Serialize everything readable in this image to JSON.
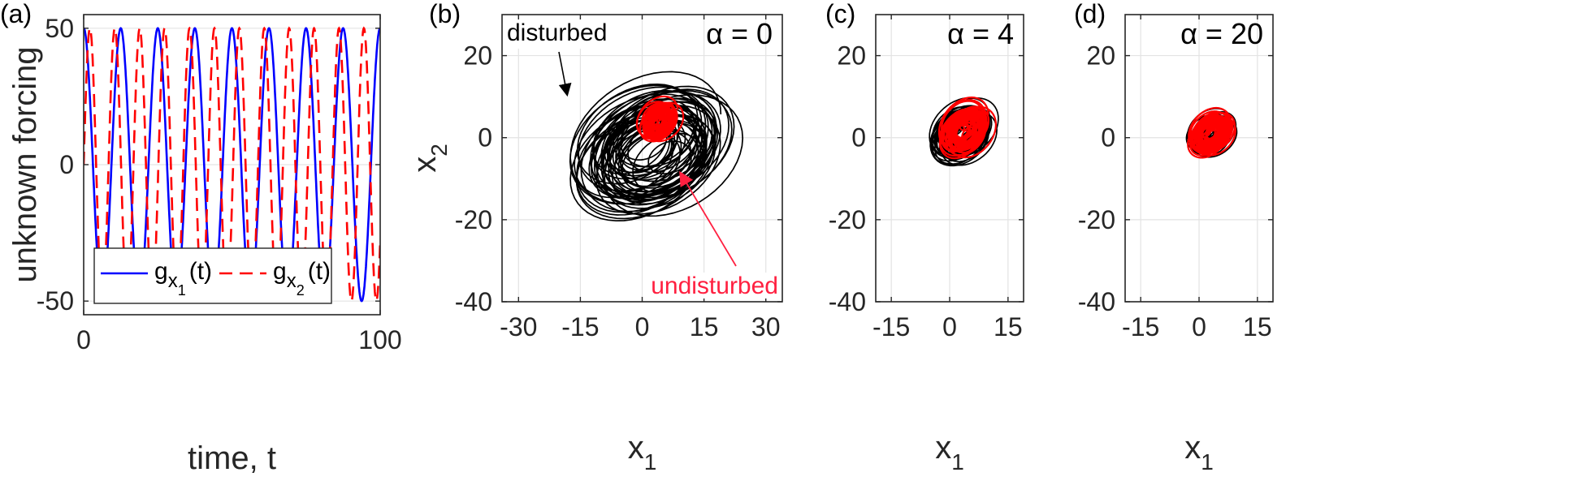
{
  "chart_data": [
    {
      "panel_label": "(a)",
      "type": "line",
      "xlabel": "time, t",
      "ylabel": "unknown forcing",
      "xlim": [
        0,
        100
      ],
      "ylim": [
        -55,
        55
      ],
      "xticks": [
        "0",
        "100"
      ],
      "yticks": [
        "50",
        "0",
        "-50"
      ],
      "grid": true,
      "legend": "bottom",
      "series": [
        {
          "name": "g_{x_1}(t)",
          "label_main": "g",
          "label_sub": "x",
          "label_subsub": "1",
          "label_tail": "(t)",
          "style": "solid",
          "color": "#0000ff",
          "amplitude": 50,
          "period": 12.5,
          "phase_deg": 90
        },
        {
          "name": "g_{x_2}(t)",
          "label_main": "g",
          "label_sub": "x",
          "label_subsub": "2",
          "label_tail": "(t)",
          "style": "dashed",
          "color": "#ff0000",
          "amplitude": 50,
          "period": 8.4,
          "phase_deg": 0
        }
      ]
    },
    {
      "panel_label": "(b)",
      "type": "line",
      "xlabel": "x",
      "xlabel_sub": "1",
      "ylabel": "x",
      "ylabel_sub": "2",
      "xlim": [
        -34,
        34
      ],
      "ylim": [
        -40,
        30
      ],
      "xticks": [
        "-30",
        "-15",
        "0",
        "15",
        "30"
      ],
      "yticks": [
        "20",
        "0",
        "-20",
        "-40"
      ],
      "grid": true,
      "alpha_label": "α = 0",
      "annotations": [
        {
          "text": "disturbed",
          "color": "#000000"
        },
        {
          "text": "undisturbed",
          "color": "#ff2040"
        }
      ],
      "series": [
        {
          "name": "disturbed",
          "color": "#000000",
          "center": [
            2,
            -3
          ],
          "spread": [
            13,
            11
          ]
        },
        {
          "name": "undisturbed",
          "color": "#ff0000",
          "center": [
            4,
            4
          ],
          "spread": [
            3.5,
            3.5
          ]
        }
      ]
    },
    {
      "panel_label": "(c)",
      "type": "line",
      "xlabel": "x",
      "xlabel_sub": "1",
      "xlim": [
        -19,
        19
      ],
      "ylim": [
        -40,
        30
      ],
      "xticks": [
        "-15",
        "0",
        "15"
      ],
      "yticks": [
        "20",
        "0",
        "-20",
        "-40"
      ],
      "grid": true,
      "alpha_label": "α = 4",
      "series": [
        {
          "name": "disturbed",
          "color": "#000000",
          "center": [
            3,
            1
          ],
          "spread": [
            5.5,
            5
          ]
        },
        {
          "name": "undisturbed",
          "color": "#ff0000",
          "center": [
            4,
            2
          ],
          "spread": [
            4.5,
            4.5
          ]
        }
      ]
    },
    {
      "panel_label": "(d)",
      "type": "line",
      "xlabel": "x",
      "xlabel_sub": "1",
      "xlim": [
        -19,
        19
      ],
      "ylim": [
        -40,
        30
      ],
      "xticks": [
        "-15",
        "0",
        "15"
      ],
      "yticks": [
        "20",
        "0",
        "-20",
        "-40"
      ],
      "grid": true,
      "alpha_label": "α = 20",
      "series": [
        {
          "name": "disturbed",
          "color": "#000000",
          "center": [
            3,
            1
          ],
          "spread": [
            4,
            3.5
          ]
        },
        {
          "name": "undisturbed",
          "color": "#ff0000",
          "center": [
            3,
            1
          ],
          "spread": [
            3.8,
            3.6
          ]
        }
      ]
    }
  ]
}
